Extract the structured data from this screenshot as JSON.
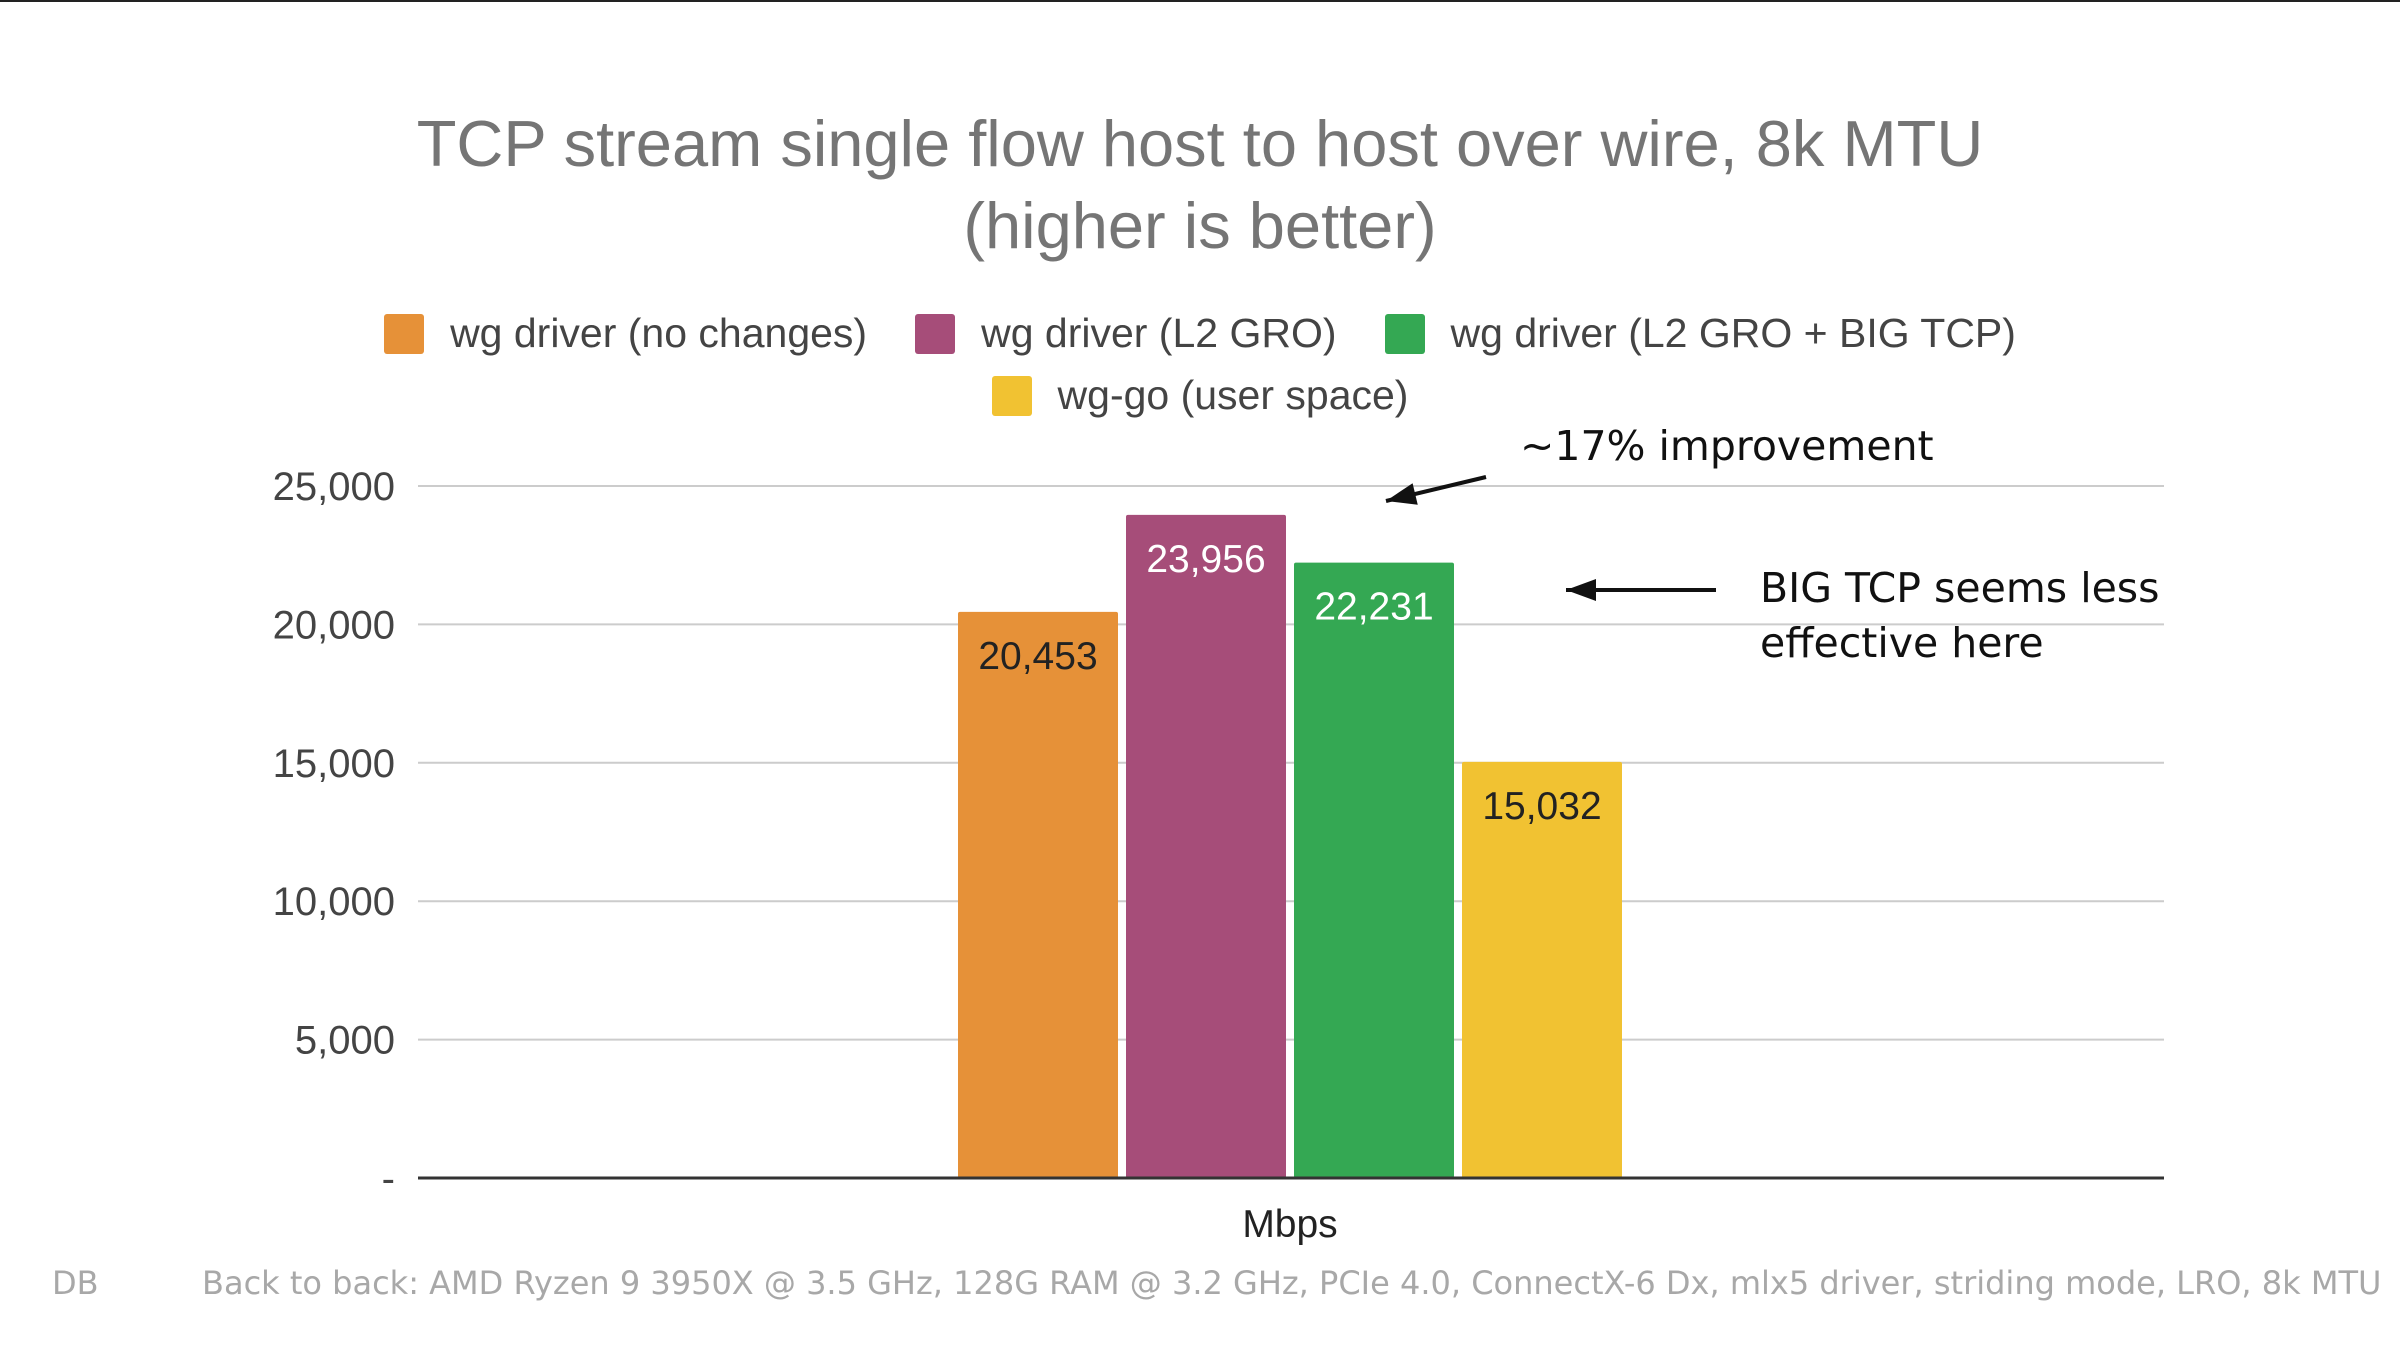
{
  "chart_data": {
    "type": "bar",
    "title_lines": [
      "TCP stream single flow host to host over wire, 8k MTU",
      "(higher is better)"
    ],
    "categories": [
      "Mbps"
    ],
    "series": [
      {
        "name": "wg driver (no changes)",
        "values": [
          20453
        ],
        "label": "20,453",
        "color": "#E69138",
        "label_color": "#222222"
      },
      {
        "name": "wg driver (L2 GRO)",
        "values": [
          23956
        ],
        "label": "23,956",
        "color": "#A64D79",
        "label_color": "#ffffff"
      },
      {
        "name": "wg driver (L2 GRO + BIG TCP)",
        "values": [
          22231
        ],
        "label": "22,231",
        "color": "#34A853",
        "label_color": "#ffffff"
      },
      {
        "name": "wg-go (user space)",
        "values": [
          15032
        ],
        "label": "15,032",
        "color": "#F1C232",
        "label_color": "#222222"
      }
    ],
    "xlabel": "Mbps",
    "ylabel": "",
    "ylim": [
      0,
      25000
    ],
    "yticks": [
      {
        "value": 0,
        "label": "-"
      },
      {
        "value": 5000,
        "label": "5,000"
      },
      {
        "value": 10000,
        "label": "10,000"
      },
      {
        "value": 15000,
        "label": "15,000"
      },
      {
        "value": 20000,
        "label": "20,000"
      },
      {
        "value": 25000,
        "label": "25,000"
      }
    ],
    "grid": true,
    "legend_position": "top-center",
    "gridline_color": "#cccccc",
    "axis_color": "#333333"
  },
  "annotations": {
    "improvement": "~17% improvement",
    "big_tcp_line1": "BIG TCP seems less",
    "big_tcp_line2": "effective here"
  },
  "footer": {
    "initials": "DB",
    "setup": "Back to back: AMD Ryzen 9 3950X @ 3.5 GHz, 128G RAM @ 3.2 GHz, PCIe 4.0, ConnectX-6 Dx, mlx5 driver, striding mode, LRO, 8k MTU"
  }
}
